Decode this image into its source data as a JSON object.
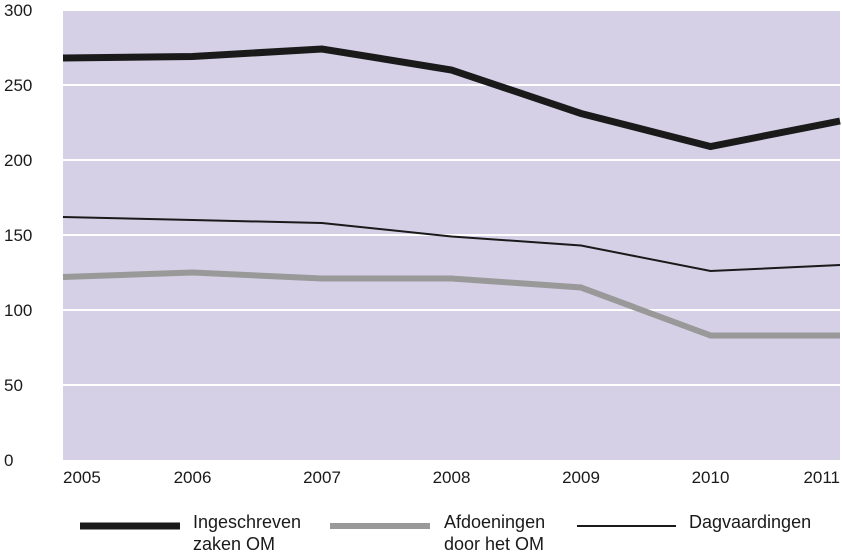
{
  "chart_data": {
    "type": "line",
    "title": "",
    "xlabel": "",
    "ylabel": "",
    "x": [
      "2005",
      "2006",
      "2007",
      "2008",
      "2009",
      "2010",
      "2011"
    ],
    "ylim": [
      0,
      300
    ],
    "yticks": [
      "0",
      "50",
      "100",
      "150",
      "200",
      "250",
      "300"
    ],
    "grid": true,
    "legend_position": "bottom",
    "plot_background": "#d5d0e6",
    "series": [
      {
        "name_lines": [
          "Ingeschreven",
          "zaken OM"
        ],
        "values": [
          268,
          269,
          274,
          260,
          231,
          209,
          226
        ],
        "color": "#1a1a1a",
        "line_style": "thick"
      },
      {
        "name_lines": [
          "Afdoeningen",
          "door het OM"
        ],
        "values": [
          122,
          125,
          121,
          121,
          115,
          83,
          83
        ],
        "color": "#999999",
        "line_style": "medium"
      },
      {
        "name_lines": [
          "Dagvaardingen"
        ],
        "values": [
          162,
          160,
          158,
          149,
          143,
          126,
          130
        ],
        "color": "#1a1a1a",
        "line_style": "thin"
      }
    ]
  }
}
